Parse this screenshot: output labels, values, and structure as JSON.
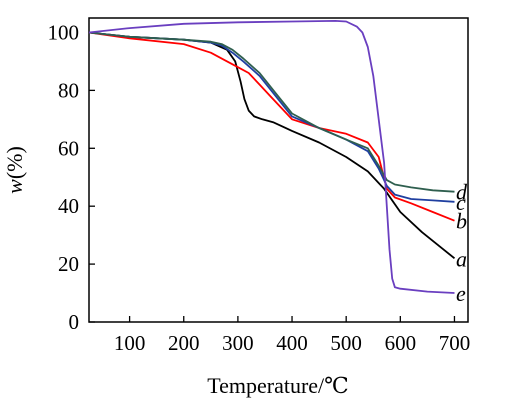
{
  "chart_data": {
    "type": "line",
    "xlabel": "Temperature/℃",
    "ylabel": {
      "var": "w",
      "unit": "(%)"
    },
    "xlim": [
      25,
      725
    ],
    "ylim": [
      0,
      105
    ],
    "xticks": [
      100,
      200,
      300,
      400,
      500,
      600,
      700
    ],
    "yticks": [
      0,
      20,
      40,
      60,
      80,
      100
    ],
    "grid": false,
    "series": [
      {
        "name": "a",
        "color": "#000000",
        "x": [
          25,
          100,
          200,
          250,
          280,
          295,
          305,
          312,
          320,
          330,
          345,
          365,
          400,
          450,
          500,
          540,
          570,
          600,
          640,
          680,
          700
        ],
        "y": [
          100,
          98.5,
          97.5,
          96.5,
          94,
          90,
          83,
          77,
          73,
          71,
          70,
          69,
          66,
          62,
          57,
          52,
          46,
          38,
          31,
          25,
          22
        ]
      },
      {
        "name": "b",
        "color": "#ff0000",
        "x": [
          25,
          100,
          200,
          250,
          280,
          300,
          320,
          340,
          360,
          380,
          400,
          450,
          500,
          540,
          560,
          575,
          590,
          620,
          660,
          700
        ],
        "y": [
          100,
          98,
          96,
          93,
          90,
          88,
          86,
          82,
          78,
          74,
          70,
          67,
          65,
          62,
          57,
          46,
          43,
          41,
          38,
          35
        ]
      },
      {
        "name": "c",
        "color": "#1f3fa0",
        "x": [
          25,
          100,
          200,
          250,
          270,
          290,
          310,
          340,
          370,
          400,
          450,
          500,
          540,
          560,
          575,
          590,
          620,
          660,
          700
        ],
        "y": [
          100,
          98.5,
          97.5,
          96.5,
          95.5,
          93,
          90,
          85,
          78,
          71,
          67,
          63,
          59,
          53,
          47,
          44,
          42.5,
          42,
          41.5
        ]
      },
      {
        "name": "d",
        "color": "#2f5f4f",
        "x": [
          25,
          100,
          200,
          250,
          270,
          290,
          310,
          340,
          370,
          400,
          450,
          500,
          540,
          560,
          575,
          590,
          620,
          660,
          700
        ],
        "y": [
          100,
          98.5,
          97.5,
          96.8,
          96,
          94,
          91,
          86,
          79,
          72,
          67,
          63,
          60,
          54,
          49,
          47.5,
          46.5,
          45.5,
          45
        ]
      },
      {
        "name": "e",
        "color": "#6a3fc0",
        "x": [
          25,
          100,
          200,
          300,
          400,
          480,
          500,
          520,
          530,
          540,
          550,
          560,
          570,
          575,
          580,
          585,
          590,
          600,
          650,
          700
        ],
        "y": [
          100,
          101.5,
          103,
          103.5,
          103.8,
          104,
          103.8,
          102,
          100,
          95,
          85,
          70,
          55,
          40,
          25,
          15,
          12,
          11.5,
          10.5,
          10
        ]
      }
    ]
  }
}
